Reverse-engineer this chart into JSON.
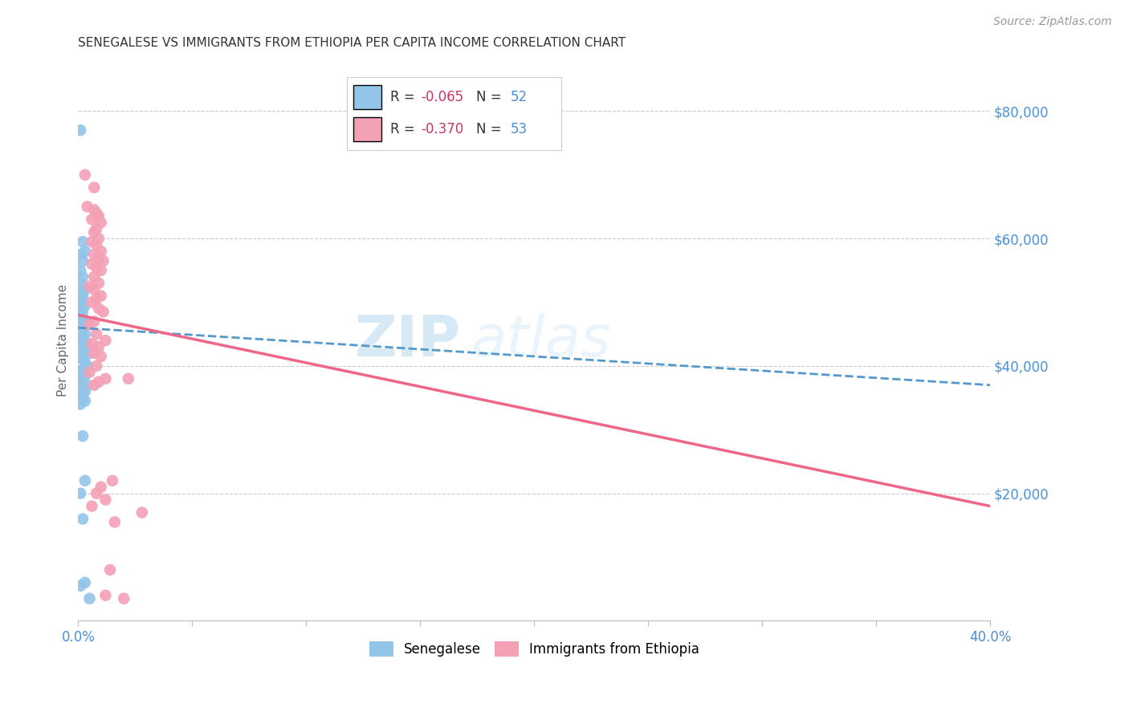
{
  "title": "SENEGALESE VS IMMIGRANTS FROM ETHIOPIA PER CAPITA INCOME CORRELATION CHART",
  "source": "Source: ZipAtlas.com",
  "ylabel": "Per Capita Income",
  "ylabel_right_ticks": [
    0,
    20000,
    40000,
    60000,
    80000
  ],
  "ylabel_right_labels": [
    "",
    "$20,000",
    "$40,000",
    "$60,000",
    "$80,000"
  ],
  "xlim": [
    0.0,
    0.4
  ],
  "ylim": [
    0,
    88000
  ],
  "legend_blue_R": "-0.065",
  "legend_blue_N": "52",
  "legend_pink_R": "-0.370",
  "legend_pink_N": "53",
  "watermark_zip": "ZIP",
  "watermark_atlas": "atlas",
  "blue_color": "#92C5E8",
  "pink_color": "#F4A0B5",
  "blue_line_color": "#5599CC",
  "pink_line_color": "#EE6688",
  "blue_scatter": [
    [
      0.001,
      77000
    ],
    [
      0.002,
      59500
    ],
    [
      0.003,
      58000
    ],
    [
      0.001,
      57500
    ],
    [
      0.002,
      56500
    ],
    [
      0.001,
      55000
    ],
    [
      0.002,
      54000
    ],
    [
      0.001,
      53000
    ],
    [
      0.003,
      52000
    ],
    [
      0.001,
      51500
    ],
    [
      0.002,
      51000
    ],
    [
      0.001,
      50500
    ],
    [
      0.002,
      50000
    ],
    [
      0.003,
      49500
    ],
    [
      0.001,
      49000
    ],
    [
      0.002,
      48500
    ],
    [
      0.001,
      48000
    ],
    [
      0.002,
      47500
    ],
    [
      0.003,
      47000
    ],
    [
      0.001,
      46500
    ],
    [
      0.002,
      46000
    ],
    [
      0.001,
      45500
    ],
    [
      0.003,
      45000
    ],
    [
      0.002,
      44500
    ],
    [
      0.001,
      44000
    ],
    [
      0.004,
      43500
    ],
    [
      0.002,
      43000
    ],
    [
      0.003,
      42500
    ],
    [
      0.005,
      42000
    ],
    [
      0.001,
      41500
    ],
    [
      0.002,
      41000
    ],
    [
      0.003,
      40500
    ],
    [
      0.004,
      40000
    ],
    [
      0.002,
      39500
    ],
    [
      0.001,
      39000
    ],
    [
      0.003,
      38500
    ],
    [
      0.002,
      38000
    ],
    [
      0.001,
      37500
    ],
    [
      0.004,
      37000
    ],
    [
      0.002,
      36500
    ],
    [
      0.003,
      36000
    ],
    [
      0.001,
      35500
    ],
    [
      0.002,
      35000
    ],
    [
      0.003,
      34500
    ],
    [
      0.001,
      34000
    ],
    [
      0.002,
      29000
    ],
    [
      0.003,
      22000
    ],
    [
      0.001,
      20000
    ],
    [
      0.002,
      16000
    ],
    [
      0.003,
      6000
    ],
    [
      0.001,
      5500
    ],
    [
      0.005,
      3500
    ]
  ],
  "pink_scatter": [
    [
      0.003,
      70000
    ],
    [
      0.007,
      68000
    ],
    [
      0.004,
      65000
    ],
    [
      0.007,
      64500
    ],
    [
      0.008,
      64000
    ],
    [
      0.009,
      63500
    ],
    [
      0.006,
      63000
    ],
    [
      0.01,
      62500
    ],
    [
      0.008,
      61500
    ],
    [
      0.007,
      61000
    ],
    [
      0.009,
      60000
    ],
    [
      0.006,
      59500
    ],
    [
      0.008,
      59000
    ],
    [
      0.01,
      58000
    ],
    [
      0.007,
      57500
    ],
    [
      0.009,
      57000
    ],
    [
      0.011,
      56500
    ],
    [
      0.006,
      56000
    ],
    [
      0.008,
      55500
    ],
    [
      0.01,
      55000
    ],
    [
      0.007,
      54000
    ],
    [
      0.009,
      53000
    ],
    [
      0.005,
      52500
    ],
    [
      0.007,
      52000
    ],
    [
      0.01,
      51000
    ],
    [
      0.008,
      50500
    ],
    [
      0.006,
      50000
    ],
    [
      0.009,
      49000
    ],
    [
      0.011,
      48500
    ],
    [
      0.007,
      47000
    ],
    [
      0.005,
      46500
    ],
    [
      0.008,
      45000
    ],
    [
      0.012,
      44000
    ],
    [
      0.006,
      43500
    ],
    [
      0.009,
      43000
    ],
    [
      0.007,
      42000
    ],
    [
      0.01,
      41500
    ],
    [
      0.008,
      40000
    ],
    [
      0.005,
      39000
    ],
    [
      0.012,
      38000
    ],
    [
      0.009,
      37500
    ],
    [
      0.007,
      37000
    ],
    [
      0.022,
      38000
    ],
    [
      0.015,
      22000
    ],
    [
      0.01,
      21000
    ],
    [
      0.008,
      20000
    ],
    [
      0.012,
      19000
    ],
    [
      0.006,
      18000
    ],
    [
      0.028,
      17000
    ],
    [
      0.016,
      15500
    ],
    [
      0.014,
      8000
    ],
    [
      0.012,
      4000
    ],
    [
      0.02,
      3500
    ]
  ],
  "blue_trend": [
    0.0,
    0.4,
    46000,
    37000
  ],
  "pink_trend": [
    0.0,
    0.4,
    48000,
    18000
  ],
  "background_color": "#FFFFFF",
  "grid_color": "#CCCCCC"
}
